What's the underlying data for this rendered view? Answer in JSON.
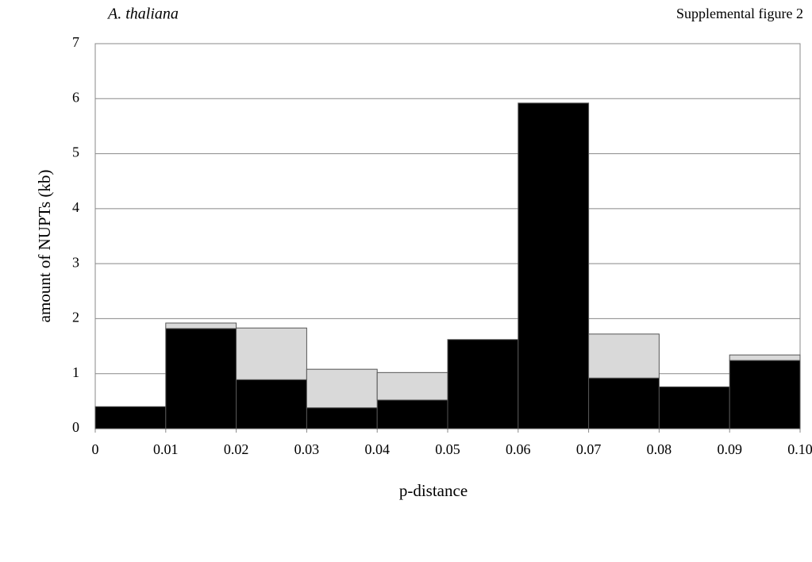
{
  "chart_data": {
    "type": "histogram",
    "title": "A. thaliana",
    "annotation": "Supplemental figure 2",
    "x_label": "p-distance",
    "y_label": "amount of NUPTs (kb)",
    "bins": [
      0,
      0.01,
      0.02,
      0.03,
      0.04,
      0.05,
      0.06,
      0.07,
      0.08,
      0.09,
      0.1
    ],
    "series": [
      {
        "color": "#000000",
        "values": [
          0.4,
          1.82,
          0.89,
          0.38,
          0.52,
          1.62,
          5.92,
          0.92,
          0.76,
          1.24
        ]
      },
      {
        "color": "#d9d9d9",
        "values": [
          0,
          0.1,
          0.94,
          0.7,
          0.5,
          0,
          0,
          0.8,
          0,
          0.1
        ]
      }
    ],
    "xlim": [
      0,
      0.1
    ],
    "xticks": [
      0,
      0.01,
      0.02,
      0.03,
      0.04,
      0.05,
      0.06,
      0.07,
      0.08,
      0.09,
      {
        "value": 0.1,
        "label": "0.10"
      }
    ],
    "ylim": [
      0,
      7
    ],
    "yticks": [
      0,
      1,
      2,
      3,
      4,
      5,
      6,
      7
    ],
    "grid": true
  }
}
